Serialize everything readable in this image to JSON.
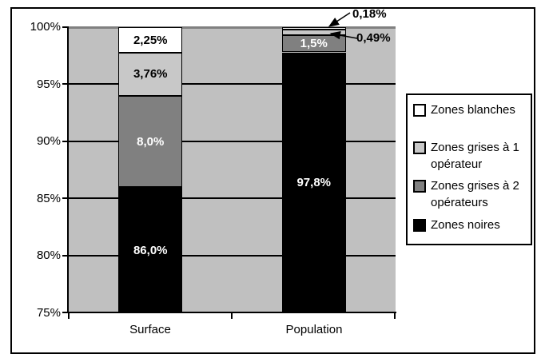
{
  "chart_data": {
    "type": "bar",
    "stacked": true,
    "stack_order": "bottom-up",
    "categories": [
      "Surface",
      "Population"
    ],
    "series": [
      {
        "name": "Zones noires",
        "color": "#000000",
        "label_color": "#FFFFFF",
        "values": [
          86.0,
          97.8
        ],
        "labels": [
          "86,0%",
          "97,8%"
        ]
      },
      {
        "name": "Zones grises à 2 opérateurs",
        "color": "#808080",
        "label_color": "#FFFFFF",
        "values": [
          8.0,
          1.5
        ],
        "labels": [
          "8,0%",
          "1,5%"
        ]
      },
      {
        "name": "Zones grises à 1 opérateur",
        "color": "#C8C8C8",
        "label_color": "#000000",
        "values": [
          3.76,
          0.49
        ],
        "labels": [
          "3,76%",
          "0,49%"
        ]
      },
      {
        "name": "Zones blanches",
        "color": "#FFFFFF",
        "label_color": "#000000",
        "values": [
          2.25,
          0.18
        ],
        "labels": [
          "2,25%",
          "0,18%"
        ]
      }
    ],
    "title": "",
    "xlabel": "",
    "ylabel": "",
    "ylim": [
      75,
      100
    ],
    "y_ticks": [
      "100%",
      "95%",
      "90%",
      "85%",
      "80%",
      "75%"
    ],
    "grid": true,
    "legend_position": "right",
    "plot_background": "#C0C0C0"
  },
  "annotations": [
    {
      "text": "0,18%",
      "target": "Population / Zones blanches"
    },
    {
      "text": "0,49%",
      "target": "Population / Zones grises à 1 opérateur"
    }
  ],
  "legend": {
    "items": [
      {
        "label": "Zones blanches",
        "color": "#FFFFFF"
      },
      {
        "label": "Zones grises à 1 opérateur",
        "color": "#C8C8C8"
      },
      {
        "label": "Zones grises à 2 opérateurs",
        "color": "#808080"
      },
      {
        "label": "Zones noires",
        "color": "#000000"
      }
    ]
  }
}
